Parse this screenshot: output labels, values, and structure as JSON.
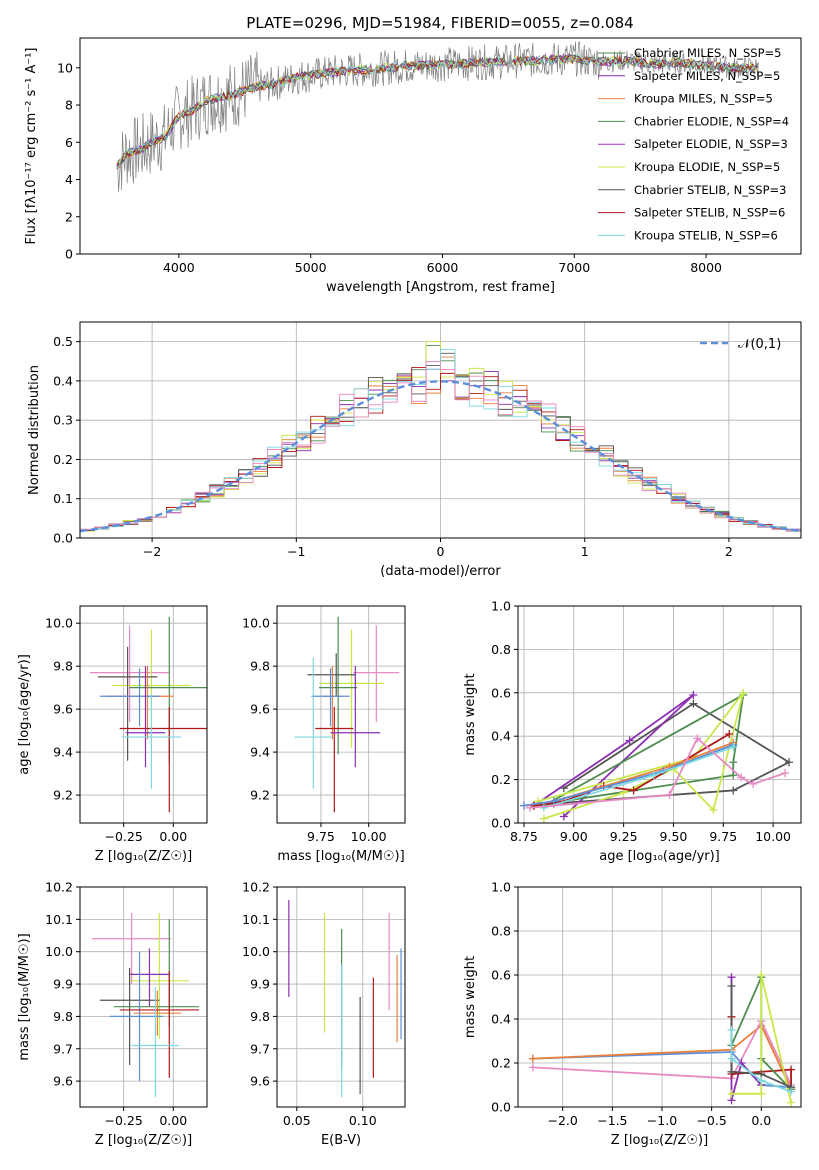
{
  "chart_data": [
    {
      "id": "spectrum",
      "type": "line",
      "title": "PLATE=0296, MJD=51984, FIBERID=0055, z=0.084",
      "xlabel": "wavelength [Angstrom, rest frame]",
      "ylabel": "Flux [fλ10⁻¹⁷ erg cm⁻² s⁻¹ A⁻¹]",
      "xlim": [
        3250,
        8720
      ],
      "ylim": [
        0,
        11.6
      ],
      "xticks": [
        4000,
        5000,
        6000,
        7000,
        8000
      ],
      "yticks": [
        0,
        2,
        4,
        6,
        8,
        10
      ],
      "grid": false,
      "legend_position": "right",
      "data": {
        "x": [
          3530,
          3600,
          3700,
          3800,
          3900,
          3950,
          4000,
          4100,
          4200,
          4300,
          4400,
          4500,
          4600,
          4700,
          4800,
          4900,
          5000,
          5100,
          5200,
          5300,
          5400,
          5500,
          5600,
          5700,
          5800,
          5900,
          6000,
          6100,
          6200,
          6300,
          6400,
          6500,
          6600,
          6700,
          6800,
          6900,
          7000,
          7100,
          7200,
          7300,
          7400,
          7500,
          7600,
          7700,
          7800,
          7900,
          8000,
          8100,
          8200,
          8400
        ],
        "y": [
          4.7,
          5.4,
          5.6,
          6.0,
          6.3,
          6.9,
          7.4,
          7.7,
          8.2,
          8.4,
          8.5,
          8.8,
          9.0,
          9.1,
          9.3,
          9.5,
          9.6,
          9.7,
          9.8,
          9.85,
          9.9,
          9.95,
          10.0,
          10.1,
          10.1,
          10.15,
          10.2,
          10.2,
          10.25,
          10.3,
          10.3,
          10.35,
          10.4,
          10.4,
          10.45,
          10.45,
          10.5,
          10.4,
          10.3,
          10.35,
          10.4,
          10.3,
          10.2,
          10.2,
          10.3,
          10.2,
          10.1,
          10.1,
          10.0,
          10.0
        ],
        "noise_amplitude": 1.2
      },
      "series": [
        {
          "name": "Chabrier MILES, N_SSP=5",
          "color": "#4e8d4e"
        },
        {
          "name": "Salpeter MILES, N_SSP=5",
          "color": "#8b2fb0"
        },
        {
          "name": "Kroupa MILES, N_SSP=5",
          "color": "#e9803a"
        },
        {
          "name": "Chabrier ELODIE, N_SSP=4",
          "color": "#4e8d4e"
        },
        {
          "name": "Salpeter ELODIE, N_SSP=3",
          "color": "#9b30b8"
        },
        {
          "name": "Kroupa ELODIE, N_SSP=5",
          "color": "#c8e84a"
        },
        {
          "name": "Chabrier STELIB, N_SSP=3",
          "color": "#555555"
        },
        {
          "name": "Salpeter STELIB, N_SSP=6",
          "color": "#b01818"
        },
        {
          "name": "Kroupa STELIB, N_SSP=6",
          "color": "#7fd8e0"
        }
      ],
      "data_color": "#808080"
    },
    {
      "id": "residuals",
      "type": "line",
      "xlabel": "(data-model)/error",
      "ylabel": "Normed distribution",
      "xlim": [
        -2.5,
        2.5
      ],
      "ylim": [
        0,
        0.55
      ],
      "xticks": [
        -2,
        -1,
        0,
        1,
        2
      ],
      "yticks": [
        0.0,
        0.1,
        0.2,
        0.3,
        0.4,
        0.5
      ],
      "grid": true,
      "legend": "𝒩(0,1)",
      "legend_position": "top-right",
      "gaussian_color": "#5b8fdc",
      "histogram_bin_width": 0.1,
      "histogram_colors": [
        "#4e8d4e",
        "#8b2fb0",
        "#e9803a",
        "#c8e84a",
        "#555555",
        "#b01818",
        "#7fd8e0",
        "#e88ac4"
      ]
    },
    {
      "id": "age_vs_Z",
      "type": "scatter",
      "xlabel": "Z [log₁₀(Z/Z☉)]",
      "ylabel": "age  [log₁₀(age/yr)]",
      "xlim": [
        -0.47,
        0.17
      ],
      "ylim": [
        9.07,
        10.08
      ],
      "xticks": [
        -0.25,
        0.0
      ],
      "yticks": [
        9.2,
        9.4,
        9.6,
        9.8,
        10.0
      ],
      "grid": true,
      "points": [
        {
          "x": -0.22,
          "y": 9.77,
          "xerr": [
            0.2,
            0.2
          ],
          "yerr": [
            0.23,
            0.22
          ],
          "color": "#e88ac4"
        },
        {
          "x": -0.11,
          "y": 9.71,
          "xerr": [
            0.2,
            0.2
          ],
          "yerr": [
            0.3,
            0.26
          ],
          "color": "#c8e84a"
        },
        {
          "x": -0.02,
          "y": 9.7,
          "xerr": [
            0.2,
            0.2
          ],
          "yerr": [
            0.35,
            0.33
          ],
          "color": "#4e8d4e"
        },
        {
          "x": -0.23,
          "y": 9.75,
          "xerr": [
            0.15,
            0.15
          ],
          "yerr": [
            0.39,
            0.14
          ],
          "color": "#555555"
        },
        {
          "x": -0.13,
          "y": 9.66,
          "xerr": [
            0.2,
            0.13
          ],
          "yerr": [
            0.2,
            0.14
          ],
          "color": "#e9803a"
        },
        {
          "x": -0.17,
          "y": 9.66,
          "xerr": [
            0.2,
            0.1
          ],
          "yerr": [
            0.14,
            0.13
          ],
          "color": "#5b8fdc"
        },
        {
          "x": -0.02,
          "y": 9.51,
          "xerr": [
            0.25,
            0.2
          ],
          "yerr": [
            0.39,
            0.1
          ],
          "color": "#b01818"
        },
        {
          "x": -0.14,
          "y": 9.49,
          "xerr": [
            0.1,
            0.1
          ],
          "yerr": [
            0.16,
            0.31
          ],
          "color": "#8b2fb0"
        },
        {
          "x": -0.11,
          "y": 9.47,
          "xerr": [
            0.15,
            0.15
          ],
          "yerr": [
            0.24,
            0.2
          ],
          "color": "#7fd8e0"
        }
      ]
    },
    {
      "id": "age_vs_mass",
      "type": "scatter",
      "xlabel": "mass [log₁₀(M/M☉)]",
      "ylabel": "",
      "xlim": [
        9.52,
        10.19
      ],
      "ylim": [
        9.07,
        10.08
      ],
      "xticks": [
        9.75,
        10.0
      ],
      "yticks": [
        9.2,
        9.4,
        9.6,
        9.8,
        10.0
      ],
      "grid": true,
      "points": [
        {
          "x": 10.04,
          "y": 9.77,
          "xerr": [
            0.12,
            0.12
          ],
          "yerr": [
            0.23,
            0.22
          ],
          "color": "#e88ac4"
        },
        {
          "x": 9.91,
          "y": 9.72,
          "xerr": [
            0.17,
            0.17
          ],
          "yerr": [
            0.3,
            0.25
          ],
          "color": "#c8e84a"
        },
        {
          "x": 9.84,
          "y": 9.7,
          "xerr": [
            0.1,
            0.1
          ],
          "yerr": [
            0.31,
            0.33
          ],
          "color": "#4e8d4e"
        },
        {
          "x": 9.83,
          "y": 9.76,
          "xerr": [
            0.15,
            0.1
          ],
          "yerr": [
            0.1,
            0.1
          ],
          "color": "#555555"
        },
        {
          "x": 9.81,
          "y": 9.66,
          "xerr": [
            0.05,
            0.05
          ],
          "yerr": [
            0.2,
            0.14
          ],
          "color": "#e9803a"
        },
        {
          "x": 9.8,
          "y": 9.66,
          "xerr": [
            0.1,
            0.1
          ],
          "yerr": [
            0.14,
            0.13
          ],
          "color": "#5b8fdc"
        },
        {
          "x": 9.82,
          "y": 9.51,
          "xerr": [
            0.1,
            0.1
          ],
          "yerr": [
            0.39,
            0.1
          ],
          "color": "#b01818"
        },
        {
          "x": 9.93,
          "y": 9.49,
          "xerr": [
            0.13,
            0.13
          ],
          "yerr": [
            0.16,
            0.31
          ],
          "color": "#8b2fb0"
        },
        {
          "x": 9.71,
          "y": 9.47,
          "xerr": [
            0.1,
            0.1
          ],
          "yerr": [
            0.24,
            0.37
          ],
          "color": "#7fd8e0"
        }
      ]
    },
    {
      "id": "weight_vs_age",
      "type": "line",
      "xlabel": "age  [log₁₀(age/yr)]",
      "ylabel": "mass weight",
      "xlim": [
        8.72,
        10.14
      ],
      "ylim": [
        0,
        1
      ],
      "xticks": [
        8.75,
        9.0,
        9.25,
        9.5,
        9.75,
        10.0
      ],
      "yticks": [
        0.0,
        0.2,
        0.4,
        0.6,
        0.8,
        1.0
      ],
      "grid": true,
      "series": [
        {
          "color": "#555555",
          "x": [
            8.95,
            9.6,
            10.08,
            9.8,
            8.9,
            8.8
          ],
          "y": [
            0.16,
            0.55,
            0.28,
            0.15,
            0.09,
            0.08
          ]
        },
        {
          "color": "#8b2fb0",
          "x": [
            8.95,
            9.6,
            9.28,
            8.8
          ],
          "y": [
            0.03,
            0.59,
            0.38,
            0.08
          ]
        },
        {
          "color": "#4e8d4e",
          "x": [
            8.85,
            9.85,
            9.8,
            9.8,
            8.8
          ],
          "y": [
            0.08,
            0.59,
            0.28,
            0.22,
            0.08
          ]
        },
        {
          "color": "#c8e84a",
          "x": [
            8.85,
            9.25,
            9.5,
            9.7,
            9.85,
            9.6,
            8.82
          ],
          "y": [
            0.02,
            0.14,
            0.25,
            0.06,
            0.6,
            0.3,
            0.1
          ]
        },
        {
          "color": "#b01818",
          "x": [
            9.78,
            9.3,
            9.15,
            8.95,
            8.8
          ],
          "y": [
            0.41,
            0.15,
            0.17,
            0.1,
            0.08
          ]
        },
        {
          "color": "#e9803a",
          "x": [
            9.8,
            9.48,
            8.9,
            8.75
          ],
          "y": [
            0.37,
            0.26,
            0.1,
            0.08
          ]
        },
        {
          "color": "#5b8fdc",
          "x": [
            9.8,
            9.45,
            8.9,
            8.75
          ],
          "y": [
            0.36,
            0.24,
            0.1,
            0.08
          ]
        },
        {
          "color": "#7fd8e0",
          "x": [
            9.8,
            9.4,
            8.85
          ],
          "y": [
            0.35,
            0.22,
            0.07
          ]
        },
        {
          "color": "#e88ac4",
          "x": [
            10.06,
            9.9,
            9.84,
            9.62,
            9.48,
            8.78
          ],
          "y": [
            0.23,
            0.18,
            0.21,
            0.39,
            0.13,
            0.07
          ]
        }
      ]
    },
    {
      "id": "mass_vs_Z",
      "type": "scatter",
      "xlabel": "Z [log₁₀(Z/Z☉)]",
      "ylabel": "mass [log₁₀(M/M☉)]",
      "xlim": [
        -0.47,
        0.17
      ],
      "ylim": [
        9.52,
        10.2
      ],
      "xticks": [
        -0.25,
        0.0
      ],
      "yticks": [
        9.6,
        9.7,
        9.8,
        9.9,
        10.0,
        10.1,
        10.2
      ],
      "grid": true,
      "points": [
        {
          "x": -0.21,
          "y": 10.04,
          "xerr": [
            0.2,
            0.2
          ],
          "yerr": [
            0.14,
            0.08
          ],
          "color": "#e88ac4"
        },
        {
          "x": -0.07,
          "y": 9.91,
          "xerr": [
            0.15,
            0.15
          ],
          "yerr": [
            0.18,
            0.21
          ],
          "color": "#c8e84a"
        },
        {
          "x": -0.12,
          "y": 9.93,
          "xerr": [
            0.1,
            0.1
          ],
          "yerr": [
            0.1,
            0.08
          ],
          "color": "#8b2fb0"
        },
        {
          "x": -0.22,
          "y": 9.85,
          "xerr": [
            0.15,
            0.15
          ],
          "yerr": [
            0.2,
            0.1
          ],
          "color": "#555555"
        },
        {
          "x": -0.02,
          "y": 9.83,
          "xerr": [
            0.28,
            0.15
          ],
          "yerr": [
            0.06,
            0.27
          ],
          "color": "#4e8d4e"
        },
        {
          "x": -0.08,
          "y": 9.81,
          "xerr": [
            0.12,
            0.12
          ],
          "yerr": [
            0.07,
            0.07
          ],
          "color": "#e9803a"
        },
        {
          "x": -0.17,
          "y": 9.8,
          "xerr": [
            0.15,
            0.12
          ],
          "yerr": [
            0.2,
            0.2
          ],
          "color": "#5b8fdc"
        },
        {
          "x": -0.02,
          "y": 9.82,
          "xerr": [
            0.25,
            0.15
          ],
          "yerr": [
            0.21,
            0.12
          ],
          "color": "#b01818"
        },
        {
          "x": -0.09,
          "y": 9.71,
          "xerr": [
            0.12,
            0.12
          ],
          "yerr": [
            0.16,
            0.18
          ],
          "color": "#7fd8e0"
        }
      ]
    },
    {
      "id": "mass_vs_EBV",
      "type": "scatter",
      "xlabel": "E(B-V)",
      "ylabel": "",
      "xlim": [
        0.035,
        0.132
      ],
      "ylim": [
        9.52,
        10.2
      ],
      "xticks": [
        0.05,
        0.1
      ],
      "yticks": [
        9.6,
        9.7,
        9.8,
        9.9,
        10.0,
        10.1,
        10.2
      ],
      "grid": true,
      "points": [
        {
          "x": 0.044,
          "y": 10.01,
          "yerr": [
            0.15,
            0.15
          ],
          "color": "#8b2fb0"
        },
        {
          "x": 0.071,
          "y": 9.94,
          "yerr": [
            0.19,
            0.18
          ],
          "color": "#c8e84a"
        },
        {
          "x": 0.084,
          "y": 9.89,
          "yerr": [
            0.25,
            0.18
          ],
          "color": "#4e8d4e"
        },
        {
          "x": 0.084,
          "y": 9.81,
          "yerr": [
            0.26,
            0.15
          ],
          "color": "#7fd8e0"
        },
        {
          "x": 0.098,
          "y": 9.76,
          "yerr": [
            0.2,
            0.1
          ],
          "color": "#555555"
        },
        {
          "x": 0.108,
          "y": 9.77,
          "yerr": [
            0.16,
            0.15
          ],
          "color": "#b01818"
        },
        {
          "x": 0.12,
          "y": 9.98,
          "yerr": [
            0.16,
            0.14
          ],
          "color": "#e88ac4"
        },
        {
          "x": 0.126,
          "y": 9.84,
          "yerr": [
            0.12,
            0.15
          ],
          "color": "#e9803a"
        },
        {
          "x": 0.129,
          "y": 9.87,
          "yerr": [
            0.14,
            0.14
          ],
          "color": "#5b8fdc"
        }
      ]
    },
    {
      "id": "weight_vs_Z",
      "type": "line",
      "xlabel": "Z [log₁₀(Z/Z☉)]",
      "ylabel": "mass weight",
      "xlim": [
        -2.45,
        0.4
      ],
      "ylim": [
        0,
        1
      ],
      "xticks": [
        -2.0,
        -1.5,
        -1.0,
        -0.5,
        0.0
      ],
      "yticks": [
        0.0,
        0.2,
        0.4,
        0.6,
        0.8,
        1.0
      ],
      "grid": true,
      "series": [
        {
          "color": "#5b8fdc",
          "x": [
            -2.3,
            -0.3,
            0.0,
            0.3
          ],
          "y": [
            0.22,
            0.25,
            0.1,
            0.09
          ]
        },
        {
          "color": "#e9803a",
          "x": [
            -2.3,
            -0.3,
            0.0,
            0.3
          ],
          "y": [
            0.22,
            0.26,
            0.37,
            0.08
          ]
        },
        {
          "color": "#e88ac4",
          "x": [
            -2.3,
            -0.3,
            0.0,
            0.3
          ],
          "y": [
            0.18,
            0.13,
            0.39,
            0.1
          ]
        },
        {
          "color": "#8b2fb0",
          "x": [
            -0.3,
            -0.3,
            -0.2,
            0.0
          ],
          "y": [
            0.59,
            0.03,
            0.2,
            0.1
          ]
        },
        {
          "color": "#b01818",
          "x": [
            -0.3,
            -0.3,
            0.3,
            0.3
          ],
          "y": [
            0.41,
            0.15,
            0.17,
            0.08
          ]
        },
        {
          "color": "#4e8d4e",
          "x": [
            -0.3,
            0.0,
            0.0,
            0.3
          ],
          "y": [
            0.28,
            0.59,
            0.22,
            0.08
          ]
        },
        {
          "color": "#c8e84a",
          "x": [
            -0.3,
            0.0,
            0.0,
            0.3
          ],
          "y": [
            0.06,
            0.06,
            0.6,
            0.02
          ]
        },
        {
          "color": "#555555",
          "x": [
            -0.3,
            -0.3,
            0.0,
            0.3
          ],
          "y": [
            0.55,
            0.16,
            0.15,
            0.09
          ]
        },
        {
          "color": "#7fd8e0",
          "x": [
            -0.3,
            -0.3,
            0.0,
            0.3
          ],
          "y": [
            0.35,
            0.22,
            0.12,
            0.07
          ]
        }
      ]
    }
  ]
}
